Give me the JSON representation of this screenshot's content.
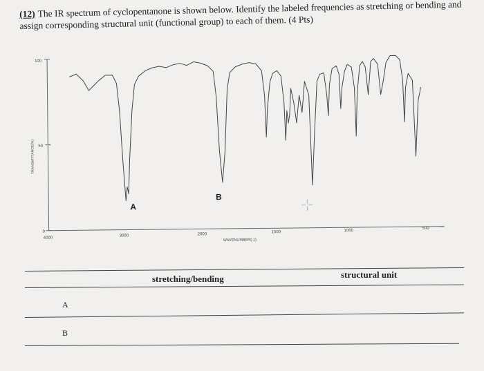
{
  "question": {
    "number": "(12)",
    "text": "The IR spectrum of cyclopentanone is shown below. Identify the labeled frequencies as stretching or bending and assign corresponding structural unit (functional group) to each of them. (4 Pts)"
  },
  "spectrum": {
    "y_axis_label": "TRANSMITTANCE(%)",
    "x_axis_label": "WAVENUMBER(-1)",
    "y_ticks": [
      "100",
      "50",
      "0"
    ],
    "x_ticks": [
      "4000",
      "3000",
      "2000",
      "1500",
      "1000",
      "500"
    ],
    "peak_labels": [
      "A",
      "B"
    ],
    "colors": {
      "line": "#444444",
      "frame": "#666666"
    }
  },
  "table": {
    "headers": [
      "stretching/bending",
      "structural unit"
    ],
    "rows": [
      "A",
      "B"
    ]
  }
}
